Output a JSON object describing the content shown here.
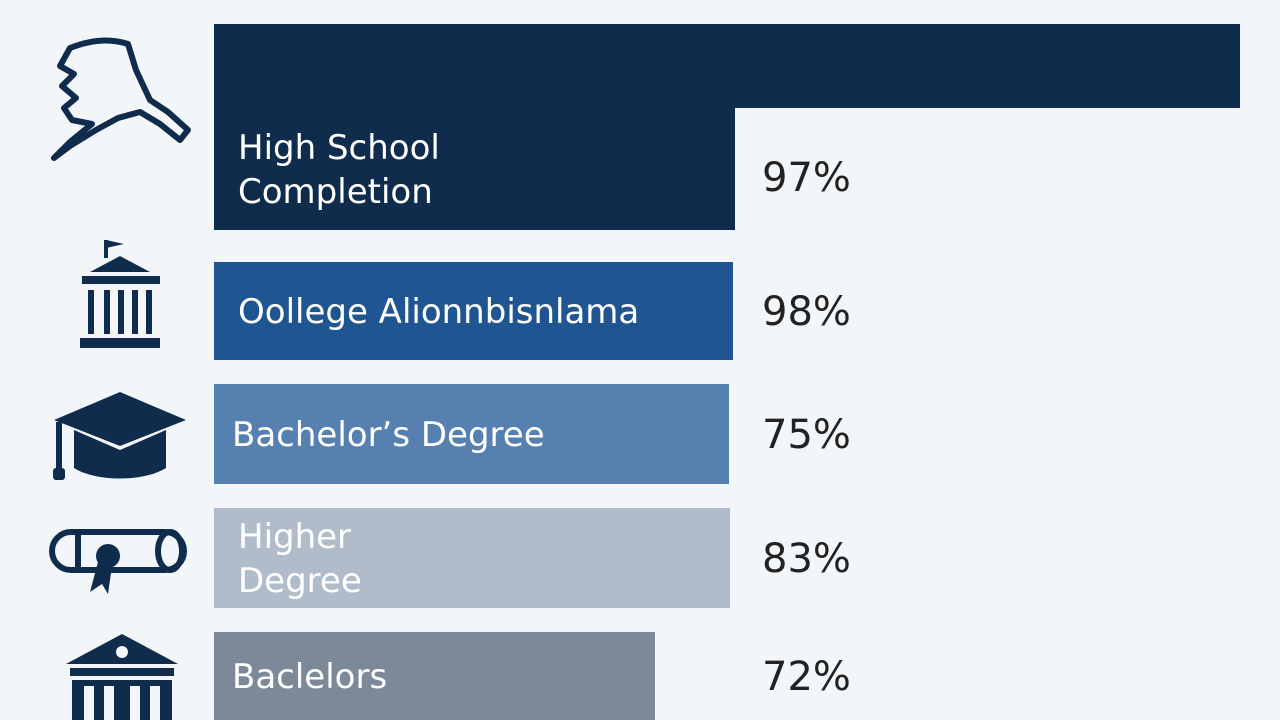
{
  "chart_data": {
    "type": "bar",
    "orientation": "horizontal",
    "title": "",
    "xlabel": "",
    "ylabel": "",
    "grid": false,
    "categories": [
      "High School Completion",
      "Oollege Alionnbisnlama",
      "Bachelor’s Degree",
      "Higher Degree",
      "Baclelors"
    ],
    "values": [
      97,
      98,
      75,
      83,
      72
    ],
    "value_labels": [
      "97%",
      "98%",
      "75%",
      "83%",
      "72%"
    ],
    "label_lines": [
      [
        "High School",
        "Completion"
      ],
      [
        "Oollege Alionnbisnlama"
      ],
      [
        "Bachelor’s Degree"
      ],
      [
        "Higher",
        "Degree"
      ],
      [
        "Baclelors"
      ]
    ],
    "bar_colors": [
      "#0f2c4c",
      "#1f5591",
      "#5580b0",
      "#b1bcca",
      "#7c8999"
    ],
    "label_colors": [
      "#ffffff",
      "#ffffff",
      "#ffffff",
      "#ffffff",
      "#ffffff"
    ],
    "icons": [
      "alaska-map-icon",
      "capitol-building-icon",
      "graduation-cap-icon",
      "diploma-scroll-icon",
      "university-building-icon"
    ]
  }
}
